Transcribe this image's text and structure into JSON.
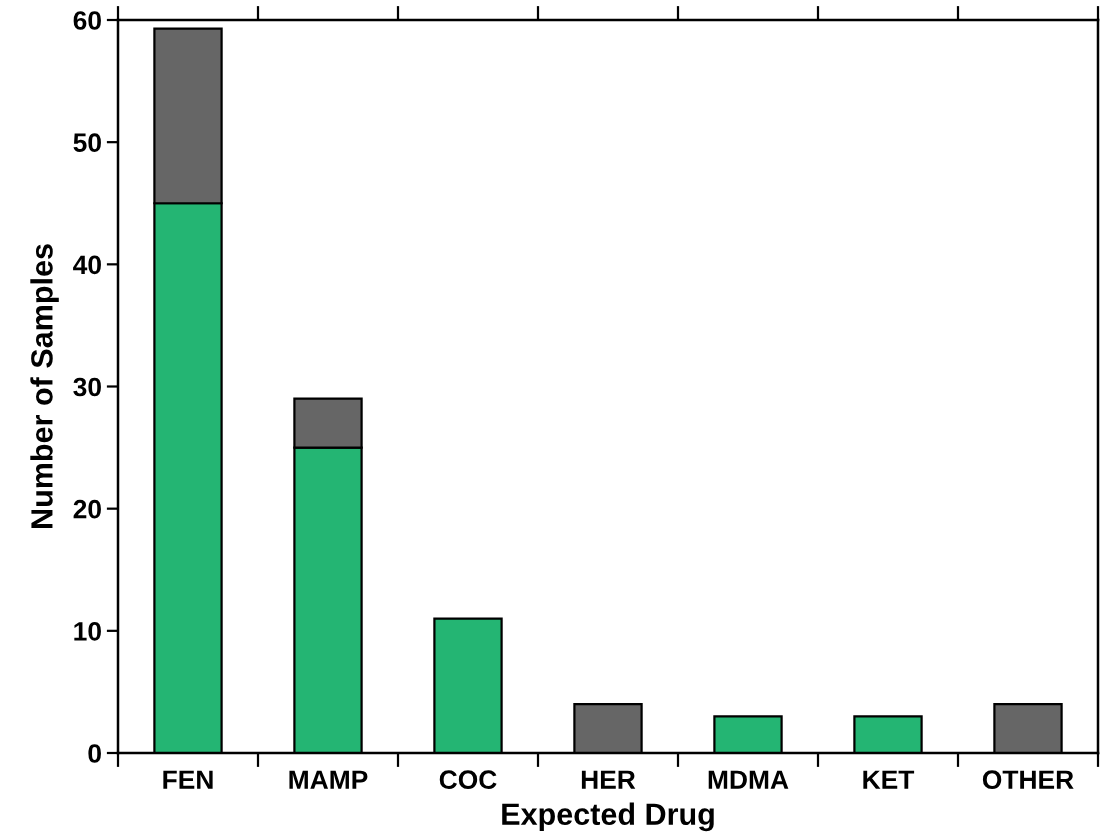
{
  "chart_data": {
    "type": "bar",
    "xlabel": "Expected Drug",
    "ylabel": "Number of Samples",
    "categories": [
      "FEN",
      "MAMP",
      "COC",
      "HER",
      "MDMA",
      "KET",
      "OTHER"
    ],
    "stacked": true,
    "series": [
      {
        "color": "#24b573",
        "values": [
          45,
          25,
          11,
          null,
          3,
          3,
          null
        ]
      },
      {
        "color": "#666666",
        "values": [
          14.3,
          4,
          null,
          4,
          null,
          null,
          4
        ]
      }
    ],
    "ylim": [
      0,
      60
    ],
    "yticks": [
      0,
      10,
      20,
      30,
      40,
      50,
      60
    ],
    "grid": false
  }
}
